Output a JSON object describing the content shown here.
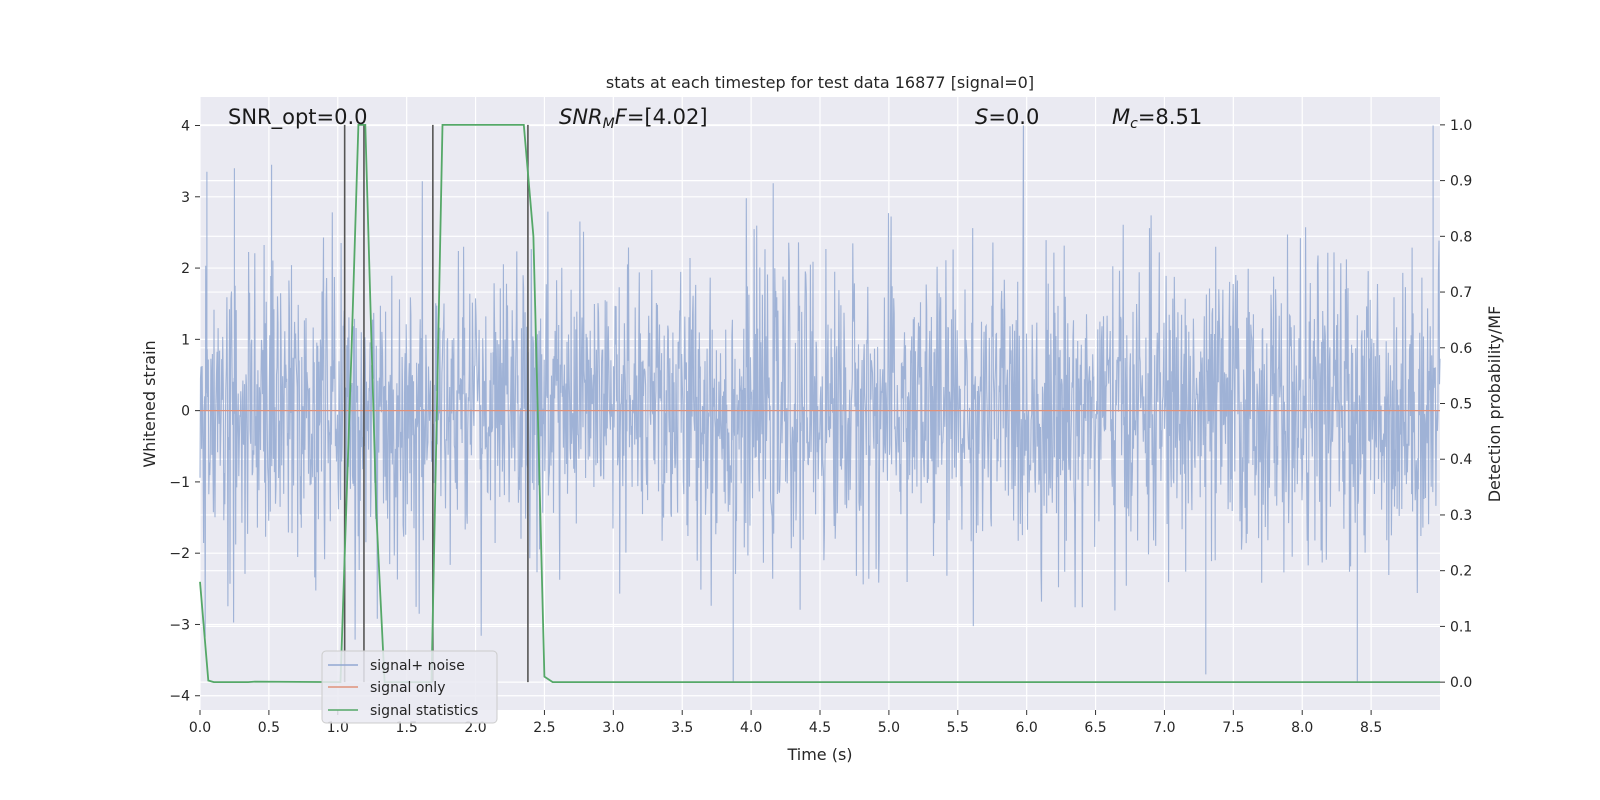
{
  "chart_data": {
    "type": "line",
    "title": "stats at each timestep for test data 16877 [signal=0]",
    "xlabel": "Time (s)",
    "ylabel": "Whitened strain",
    "ylabel_right": "Detection probability/MF",
    "xlim": [
      0.0,
      9.0
    ],
    "ylim": [
      -4.2,
      4.4
    ],
    "ylim_right": [
      -0.05,
      1.05
    ],
    "x_ticks": [
      "0.0",
      "0.5",
      "1.0",
      "1.5",
      "2.0",
      "2.5",
      "3.0",
      "3.5",
      "4.0",
      "4.5",
      "5.0",
      "5.5",
      "6.0",
      "6.5",
      "7.0",
      "7.5",
      "8.0",
      "8.5"
    ],
    "x_tick_values": [
      0.0,
      0.5,
      1.0,
      1.5,
      2.0,
      2.5,
      3.0,
      3.5,
      4.0,
      4.5,
      5.0,
      5.5,
      6.0,
      6.5,
      7.0,
      7.5,
      8.0,
      8.5
    ],
    "y_ticks": [
      "4",
      "3",
      "2",
      "1",
      "0",
      "−1",
      "−2",
      "−3",
      "−4"
    ],
    "y_tick_values": [
      4,
      3,
      2,
      1,
      0,
      -1,
      -2,
      -3,
      -4
    ],
    "y_ticks_right": [
      "1.0",
      "0.9",
      "0.8",
      "0.7",
      "0.6",
      "0.5",
      "0.4",
      "0.3",
      "0.2",
      "0.1",
      "0.0"
    ],
    "y_tick_values_right": [
      1.0,
      0.9,
      0.8,
      0.7,
      0.6,
      0.5,
      0.4,
      0.3,
      0.2,
      0.1,
      0.0
    ],
    "grid": true,
    "legend_position": "lower-left",
    "annotations": {
      "snr_opt": "SNR_opt=0.0",
      "snr_mf_symbol": "SNR",
      "snr_mf_sub": "M",
      "snr_mf_tail": "F",
      "snr_mf_value": "=[4.02]",
      "s_symbol": "S",
      "s_value": "=0.0",
      "mc_symbol": "M",
      "mc_sub": "c",
      "mc_value": "=8.51"
    },
    "series": [
      {
        "name": "signal+ noise",
        "color": "#92a8d1",
        "axis": "left",
        "description_values": "noise strain, sampled",
        "noise_seed": 16877,
        "envelope_typical": 1.0,
        "extreme_values": [
          [
            0.05,
            3.35
          ],
          [
            0.25,
            3.4
          ],
          [
            0.52,
            3.45
          ],
          [
            7.3,
            -3.7
          ],
          [
            3.87,
            -3.8
          ],
          [
            8.4,
            -3.8
          ],
          [
            8.95,
            4.0
          ]
        ]
      },
      {
        "name": "signal only",
        "color": "#e0917a",
        "axis": "left",
        "x": [
          0.0,
          9.0
        ],
        "values": [
          0.0,
          0.0
        ]
      },
      {
        "name": "signal statistics",
        "color": "#55a868",
        "axis": "right",
        "x": [
          0.0,
          0.06,
          0.1,
          0.35,
          0.4,
          1.02,
          1.1,
          1.15,
          1.2,
          1.28,
          1.34,
          1.68,
          1.72,
          1.76,
          1.8,
          2.3,
          2.35,
          2.42,
          2.5,
          2.56,
          9.0
        ],
        "values": [
          0.18,
          0.003,
          0.0,
          0.0,
          0.001,
          0.0,
          0.6,
          1.0,
          1.0,
          0.3,
          0.0,
          0.0,
          0.5,
          1.0,
          1.0,
          1.0,
          1.0,
          0.8,
          0.01,
          0.0,
          0.0
        ]
      }
    ],
    "vertical_markers": [
      1.05,
      1.19,
      1.69,
      2.38
    ]
  }
}
